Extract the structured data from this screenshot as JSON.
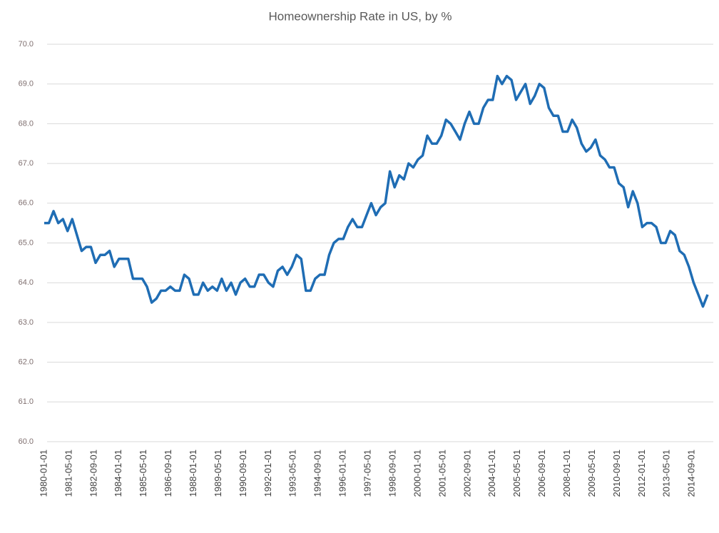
{
  "chart_data": {
    "type": "line",
    "title": "Homeownership Rate in US, by %",
    "x": [
      "1980-01-01",
      "1980-04-01",
      "1980-07-01",
      "1980-10-01",
      "1981-01-01",
      "1981-04-01",
      "1981-07-01",
      "1981-10-01",
      "1982-01-01",
      "1982-04-01",
      "1982-07-01",
      "1982-10-01",
      "1983-01-01",
      "1983-04-01",
      "1983-07-01",
      "1983-10-01",
      "1984-01-01",
      "1984-04-01",
      "1984-07-01",
      "1984-10-01",
      "1985-01-01",
      "1985-04-01",
      "1985-07-01",
      "1985-10-01",
      "1986-01-01",
      "1986-04-01",
      "1986-07-01",
      "1986-10-01",
      "1987-01-01",
      "1987-04-01",
      "1987-07-01",
      "1987-10-01",
      "1988-01-01",
      "1988-04-01",
      "1988-07-01",
      "1988-10-01",
      "1989-01-01",
      "1989-04-01",
      "1989-07-01",
      "1989-10-01",
      "1990-01-01",
      "1990-04-01",
      "1990-07-01",
      "1990-10-01",
      "1991-01-01",
      "1991-04-01",
      "1991-07-01",
      "1991-10-01",
      "1992-01-01",
      "1992-04-01",
      "1992-07-01",
      "1992-10-01",
      "1993-01-01",
      "1993-04-01",
      "1993-07-01",
      "1993-10-01",
      "1994-01-01",
      "1994-04-01",
      "1994-07-01",
      "1994-10-01",
      "1995-01-01",
      "1995-04-01",
      "1995-07-01",
      "1995-10-01",
      "1996-01-01",
      "1996-04-01",
      "1996-07-01",
      "1996-10-01",
      "1997-01-01",
      "1997-04-01",
      "1997-07-01",
      "1997-10-01",
      "1998-01-01",
      "1998-04-01",
      "1998-07-01",
      "1998-10-01",
      "1999-01-01",
      "1999-04-01",
      "1999-07-01",
      "1999-10-01",
      "2000-01-01",
      "2000-04-01",
      "2000-07-01",
      "2000-10-01",
      "2001-01-01",
      "2001-04-01",
      "2001-07-01",
      "2001-10-01",
      "2002-01-01",
      "2002-04-01",
      "2002-07-01",
      "2002-10-01",
      "2003-01-01",
      "2003-04-01",
      "2003-07-01",
      "2003-10-01",
      "2004-01-01",
      "2004-04-01",
      "2004-07-01",
      "2004-10-01",
      "2005-01-01",
      "2005-04-01",
      "2005-07-01",
      "2005-10-01",
      "2006-01-01",
      "2006-04-01",
      "2006-07-01",
      "2006-10-01",
      "2007-01-01",
      "2007-04-01",
      "2007-07-01",
      "2007-10-01",
      "2008-01-01",
      "2008-04-01",
      "2008-07-01",
      "2008-10-01",
      "2009-01-01",
      "2009-04-01",
      "2009-07-01",
      "2009-10-01",
      "2010-01-01",
      "2010-04-01",
      "2010-07-01",
      "2010-10-01",
      "2011-01-01",
      "2011-04-01",
      "2011-07-01",
      "2011-10-01",
      "2012-01-01",
      "2012-04-01",
      "2012-07-01",
      "2012-10-01",
      "2013-01-01",
      "2013-04-01",
      "2013-07-01",
      "2013-10-01",
      "2014-01-01",
      "2014-04-01",
      "2014-07-01",
      "2014-10-01",
      "2015-01-01",
      "2015-04-01",
      "2015-07-01"
    ],
    "series": [
      {
        "name": "Homeownership Rate",
        "color": "#1f6db4",
        "values": [
          65.5,
          65.5,
          65.8,
          65.5,
          65.6,
          65.3,
          65.6,
          65.2,
          64.8,
          64.9,
          64.9,
          64.5,
          64.7,
          64.7,
          64.8,
          64.4,
          64.6,
          64.6,
          64.6,
          64.1,
          64.1,
          64.1,
          63.9,
          63.5,
          63.6,
          63.8,
          63.8,
          63.9,
          63.8,
          63.8,
          64.2,
          64.1,
          63.7,
          63.7,
          64.0,
          63.8,
          63.9,
          63.8,
          64.1,
          63.8,
          64.0,
          63.7,
          64.0,
          64.1,
          63.9,
          63.9,
          64.2,
          64.2,
          64.0,
          63.9,
          64.3,
          64.4,
          64.2,
          64.4,
          64.7,
          64.6,
          63.8,
          63.8,
          64.1,
          64.2,
          64.2,
          64.7,
          65.0,
          65.1,
          65.1,
          65.4,
          65.6,
          65.4,
          65.4,
          65.7,
          66.0,
          65.7,
          65.9,
          66.0,
          66.8,
          66.4,
          66.7,
          66.6,
          67.0,
          66.9,
          67.1,
          67.2,
          67.7,
          67.5,
          67.5,
          67.7,
          68.1,
          68.0,
          67.8,
          67.6,
          68.0,
          68.3,
          68.0,
          68.0,
          68.4,
          68.6,
          68.6,
          69.2,
          69.0,
          69.2,
          69.1,
          68.6,
          68.8,
          69.0,
          68.5,
          68.7,
          69.0,
          68.9,
          68.4,
          68.2,
          68.2,
          67.8,
          67.8,
          68.1,
          67.9,
          67.5,
          67.3,
          67.4,
          67.6,
          67.2,
          67.1,
          66.9,
          66.9,
          66.5,
          66.4,
          65.9,
          66.3,
          66.0,
          65.4,
          65.5,
          65.5,
          65.4,
          65.0,
          65.0,
          65.3,
          65.2,
          64.8,
          64.7,
          64.4,
          64.0,
          63.7,
          63.4,
          63.7
        ]
      }
    ],
    "xlim": [
      "1980-01-01",
      "2015-07-01"
    ],
    "xticks": [
      "1980-01-01",
      "1981-05-01",
      "1982-09-01",
      "1984-01-01",
      "1985-05-01",
      "1986-09-01",
      "1988-01-01",
      "1989-05-01",
      "1990-09-01",
      "1992-01-01",
      "1993-05-01",
      "1994-09-01",
      "1996-01-01",
      "1997-05-01",
      "1998-09-01",
      "2000-01-01",
      "2001-05-01",
      "2002-09-01",
      "2004-01-01",
      "2005-05-01",
      "2006-09-01",
      "2008-01-01",
      "2009-05-01",
      "2010-09-01",
      "2012-01-01",
      "2013-05-01",
      "2014-09-01"
    ],
    "ylim": [
      60,
      70
    ],
    "yticks": [
      {
        "value": 60,
        "label": "60.0"
      },
      {
        "value": 61,
        "label": "61.0"
      },
      {
        "value": 62,
        "label": "62.0"
      },
      {
        "value": 63,
        "label": "63.0"
      },
      {
        "value": 64,
        "label": "64.0"
      },
      {
        "value": 65,
        "label": "65.0"
      },
      {
        "value": 66,
        "label": "66.0"
      },
      {
        "value": 67,
        "label": "67.0"
      },
      {
        "value": 68,
        "label": "68.0"
      },
      {
        "value": 69,
        "label": "69.0"
      },
      {
        "value": 70,
        "label": "70.0"
      }
    ],
    "grid": true
  }
}
